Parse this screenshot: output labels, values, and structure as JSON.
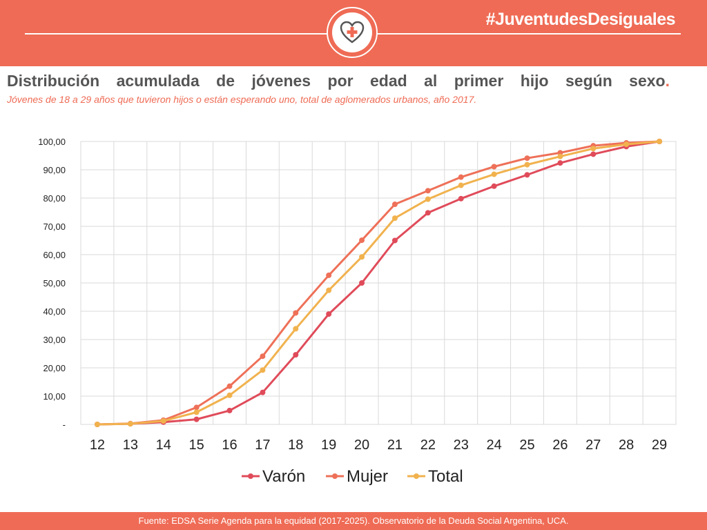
{
  "header": {
    "hashtag": "#JuventudesDesiguales",
    "badge_icon": "heart-plus-icon"
  },
  "title": {
    "main": "Distribución acumulada de jóvenes por edad al primer hijo según sexo",
    "dot": ".",
    "subtitle": "Jóvenes de 18 a 29 años que tuvieron hijos o están esperando uno, total de aglomerados urbanos, año 2017."
  },
  "footer": {
    "source": "Fuente: EDSA Serie Agenda para la equidad (2017-2025). Observatorio de la Deuda Social Argentina, UCA."
  },
  "colors": {
    "accent": "#ef6b55",
    "varon": "#e04b5a",
    "mujer": "#ee7058",
    "total": "#f1b24e"
  },
  "chart_data": {
    "type": "line",
    "title": "",
    "xlabel": "",
    "ylabel": "",
    "x": [
      "12",
      "13",
      "14",
      "15",
      "16",
      "17",
      "18",
      "19",
      "20",
      "21",
      "22",
      "23",
      "24",
      "25",
      "26",
      "27",
      "28",
      "29"
    ],
    "ylim": [
      0,
      100
    ],
    "yticks": [
      "-",
      "10,00",
      "20,00",
      "30,00",
      "40,00",
      "50,00",
      "60,00",
      "70,00",
      "80,00",
      "90,00",
      "100,00"
    ],
    "grid": true,
    "legend": "bottom",
    "series": [
      {
        "name": "Varón",
        "values": [
          0,
          0.2,
          0.8,
          1.8,
          4.9,
          11.3,
          24.6,
          39.0,
          50.0,
          65.0,
          74.8,
          79.8,
          84.2,
          88.2,
          92.4,
          95.5,
          98.2,
          100
        ]
      },
      {
        "name": "Mujer",
        "values": [
          0,
          0.3,
          1.5,
          6.0,
          13.5,
          24.1,
          39.4,
          52.7,
          65.1,
          77.8,
          82.6,
          87.4,
          91.1,
          94.1,
          96.0,
          98.5,
          99.5,
          100
        ]
      },
      {
        "name": "Total",
        "values": [
          0,
          0.2,
          1.2,
          4.3,
          10.3,
          19.2,
          33.8,
          47.4,
          59.2,
          72.9,
          79.6,
          84.5,
          88.4,
          91.8,
          94.7,
          97.5,
          99.0,
          100
        ]
      }
    ]
  }
}
